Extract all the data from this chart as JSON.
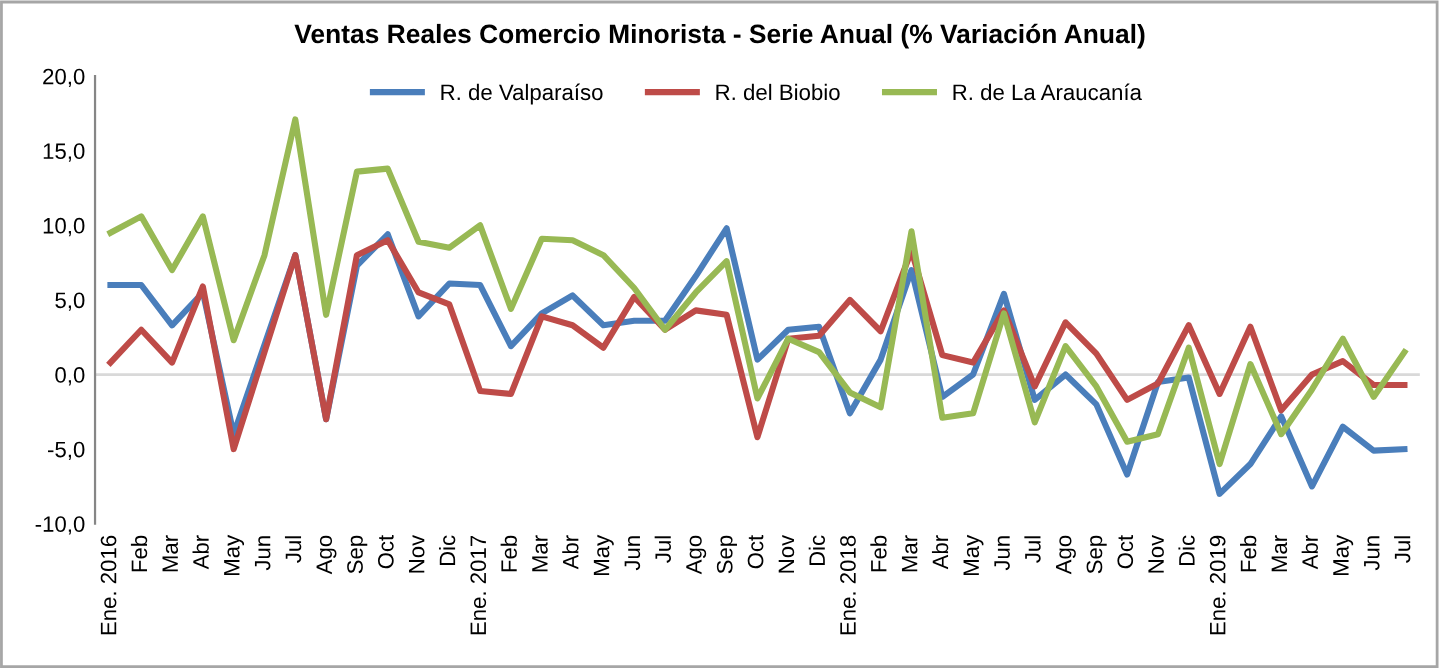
{
  "chart_data": {
    "type": "line",
    "title": "Ventas Reales Comercio Minorista - Serie Anual (% Variación Anual)",
    "categories": [
      "Ene. 2016",
      "Feb",
      "Mar",
      "Abr",
      "May",
      "Jun",
      "Jul",
      "Ago",
      "Sep",
      "Oct",
      "Nov",
      "Dic",
      "Ene. 2017",
      "Feb",
      "Mar",
      "Abr",
      "May",
      "Jun",
      "Jul",
      "Ago",
      "Sep",
      "Oct",
      "Nov",
      "Dic",
      "Ene. 2018",
      "Feb",
      "Mar",
      "Abr",
      "May",
      "Jun",
      "Jul",
      "Ago",
      "Sep",
      "Oct",
      "Nov",
      "Dic",
      "Ene. 2019",
      "Feb",
      "Mar",
      "Abr",
      "May",
      "Jun",
      "Jul"
    ],
    "series": [
      {
        "name": "R. de Valparaíso",
        "color": "#4a7ebb",
        "values": [
          6.0,
          6.0,
          3.3,
          5.5,
          -4.0,
          2.0,
          8.0,
          -3.0,
          7.3,
          9.4,
          3.9,
          6.1,
          6.0,
          1.9,
          4.1,
          5.3,
          3.3,
          3.6,
          3.6,
          6.6,
          9.8,
          1.0,
          3.0,
          3.2,
          -2.6,
          1.0,
          7.0,
          -1.5,
          0.0,
          5.4,
          -1.7,
          0.0,
          -2.0,
          -6.7,
          -0.5,
          -0.2,
          -8.0,
          -6.0,
          -2.8,
          -7.5,
          -3.5,
          -5.1,
          -5.0
        ]
      },
      {
        "name": "R. del Biobio",
        "color": "#be4b48",
        "values": [
          0.8,
          3.0,
          0.8,
          5.9,
          -5.0,
          1.5,
          8.0,
          -3.0,
          8.0,
          9.0,
          5.5,
          4.7,
          -1.1,
          -1.3,
          3.9,
          3.3,
          1.8,
          5.2,
          3.0,
          4.3,
          4.0,
          -4.2,
          2.4,
          2.6,
          5.0,
          2.9,
          8.3,
          1.3,
          0.8,
          4.3,
          -0.8,
          3.5,
          1.4,
          -1.7,
          -0.6,
          3.3,
          -1.3,
          3.2,
          -2.4,
          0.0,
          0.9,
          -0.7,
          -0.7
        ]
      },
      {
        "name": "R. de La Araucanía",
        "color": "#98b954",
        "values": [
          9.5,
          10.6,
          7.0,
          10.6,
          2.3,
          8.0,
          17.1,
          4.0,
          13.6,
          13.8,
          8.9,
          8.5,
          10.0,
          4.4,
          9.1,
          9.0,
          8.0,
          5.8,
          3.0,
          5.5,
          7.6,
          -1.6,
          2.4,
          1.5,
          -1.2,
          -2.2,
          9.6,
          -2.9,
          -2.6,
          4.1,
          -3.2,
          1.9,
          -0.8,
          -4.5,
          -4.0,
          1.8,
          -6.0,
          0.7,
          -4.0,
          -1.0,
          2.4,
          -1.5,
          1.5
        ]
      }
    ],
    "ylim": [
      -10,
      20
    ],
    "yticks": [
      {
        "value": -10,
        "label": "-10,0"
      },
      {
        "value": -5,
        "label": "-5,0"
      },
      {
        "value": 0,
        "label": "0,0"
      },
      {
        "value": 5,
        "label": "5,0"
      },
      {
        "value": 10,
        "label": "10,0"
      },
      {
        "value": 15,
        "label": "15,0"
      },
      {
        "value": 20,
        "label": "20,0"
      }
    ],
    "ref_lines": [
      {
        "axis": "y",
        "value": 0,
        "color": "#d9d9d9"
      }
    ],
    "grid": false,
    "legend": "top",
    "marker": "none",
    "line_style": "solid"
  }
}
